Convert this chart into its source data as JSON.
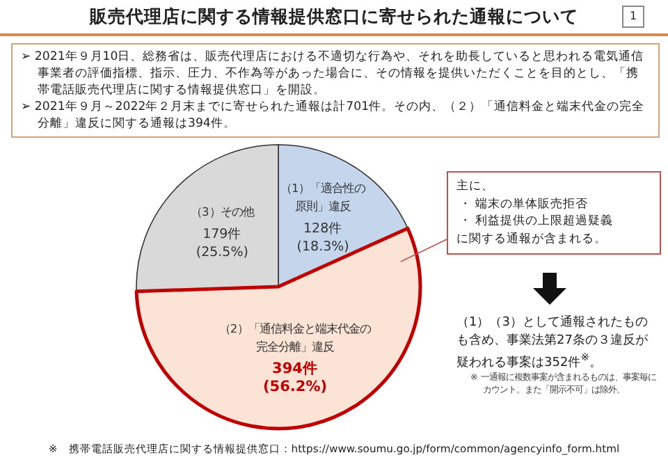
{
  "chart_data": {
    "type": "pie",
    "title": "販売代理店に関する情報提供窓口に寄せられた通報について",
    "categories": [
      "（1）「適合性の原則」違反",
      "（2）「通信料金と端末代金の完全分離」違反",
      "（3）その他"
    ],
    "values": [
      128,
      394,
      179
    ],
    "colors": [
      "#c5d6ec",
      "#fbe4d5",
      "#d9d9d9"
    ],
    "value_labels": [
      "128件(18.3%)",
      "394件(56.2%)",
      "179件(25.5%)"
    ],
    "annotations": [
      "1",
      "➢ 2021年９月10日、総務省は、販売代理店における不適切な行為や、それを助長していると思われる電気通信事業者の評価指標、指示、圧力、不作為等があった場合に、その情報を提供いただくことを目的とし、「携帯電話販売代理店に関する情報提供窓口」を開設。",
      "➢ 2021年９月～2022年２月末までに寄せられた通報は計701件。その内、（２）「通信料金と端末代金の完全分離」違反に関する通報は394件。",
      "主に、",
      "・ 端末の単体販売拒否",
      "・ 利益提供の上限超過疑義",
      "に関する通報が含まれる。",
      "（1）（3）として通報されたものも含め、事業法第27条の３違反が疑われる事案は352件$^{※}$。",
      "※ 一通報に複数事案が含まれるものは、事案毎にカウント。また「開示不可」は除外。",
      "※　携帯電話販売代理店に関する情報提供窓口：https://www.soumu.go.jp/form/common/agencyinfo_form.html"
    ]
  }
}
